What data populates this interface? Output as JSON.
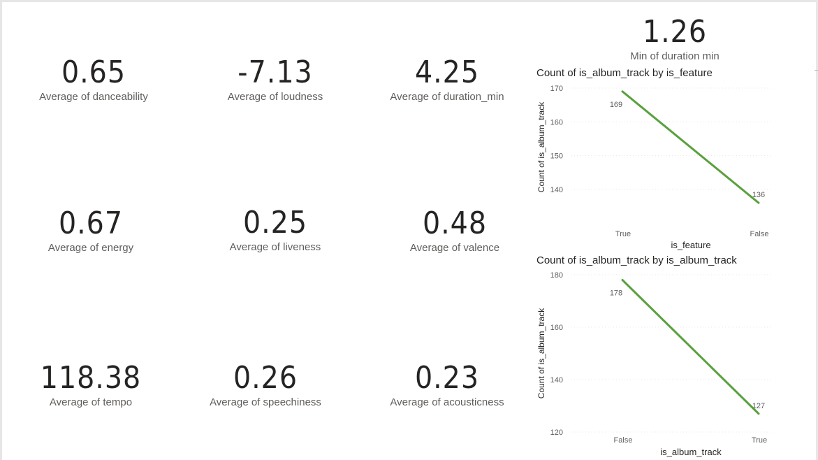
{
  "cards": [
    {
      "value": "0.65",
      "label": "Average of danceability"
    },
    {
      "value": "-7.13",
      "label": "Average of loudness"
    },
    {
      "value": "4.25",
      "label": "Average of duration_min"
    },
    {
      "value": "1.26",
      "label": "Min of duration  min"
    },
    {
      "value": "0.67",
      "label": "Average of energy"
    },
    {
      "value": "0.25",
      "label": "Average of liveness"
    },
    {
      "value": "0.48",
      "label": "Average of valence"
    },
    {
      "value": "118.38",
      "label": "Average of tempo"
    },
    {
      "value": "0.26",
      "label": "Average of speechiness"
    },
    {
      "value": "0.23",
      "label": "Average of acousticness"
    }
  ],
  "chart_data": [
    {
      "type": "line",
      "title": "Count of is_album_track by is_feature",
      "xlabel": "is_feature",
      "ylabel": "Count of is_album_track",
      "categories": [
        "True",
        "False"
      ],
      "values": [
        169,
        136
      ],
      "ylim": [
        135,
        170
      ],
      "yticks": [
        170,
        160,
        150,
        140
      ],
      "ytick_labels": [
        "170",
        "160",
        "150",
        "140"
      ],
      "data_labels": [
        "169",
        "136"
      ],
      "grid": true,
      "color": "#5aa13e"
    },
    {
      "type": "line",
      "title": "Count of is_album_track by is_album_track",
      "xlabel": "is_album_track",
      "ylabel": "Count of is_album_track",
      "categories": [
        "False",
        "True"
      ],
      "values": [
        178,
        127
      ],
      "ylim": [
        120,
        180
      ],
      "yticks": [
        180,
        160,
        140,
        120
      ],
      "ytick_labels": [
        "180",
        "160",
        "140",
        "120"
      ],
      "data_labels": [
        "178",
        "127"
      ],
      "grid": true,
      "color": "#5aa13e"
    }
  ]
}
